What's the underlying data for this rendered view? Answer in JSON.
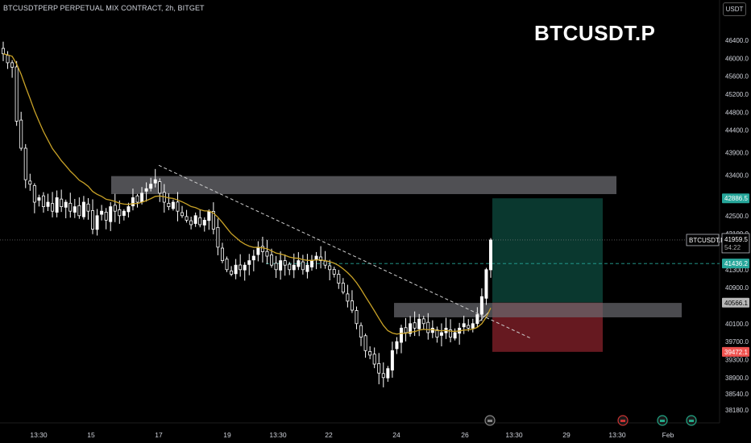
{
  "header": {
    "instrument_line": "BTCUSDTPERP PERPETUAL MIX CONTRACT, 2h, BITGET",
    "currency_button": "USDT",
    "watermark_title": "BTCUSDT.P"
  },
  "colors": {
    "background": "#000000",
    "candle_up": "#ffffff",
    "candle_down": "#ffffff",
    "ma_line": "#c9a227",
    "zone_gray": "#6b6b70",
    "profit_zone": "#0b3b31",
    "loss_zone": "#6b1a22",
    "price_last": "#ffffff",
    "tag_green": "#26a69a",
    "tag_red": "#ef5350",
    "tag_gray": "#b8b8b8"
  },
  "chart_data": {
    "type": "candlestick",
    "symbol": "BTCUSDT.P",
    "interval": "2h",
    "y_ticks": [
      46400,
      46000,
      45600,
      45200,
      44800,
      44400,
      43900,
      43400,
      42500,
      42100,
      41300,
      40900,
      40100,
      39700,
      39300,
      38900,
      38540,
      38180
    ],
    "y_tick_labels": [
      "46400.0",
      "46000.0",
      "45600.0",
      "45200.0",
      "44800.0",
      "44400.0",
      "43900.0",
      "43400.0",
      "42500.0",
      "42100.0",
      "41300.0",
      "40900.0",
      "40100.0",
      "39700.0",
      "39300.0",
      "38900.0",
      "38540.0",
      "38180.0"
    ],
    "x_tick_labels": [
      "13:30",
      "15",
      "17",
      "19",
      "13:30",
      "22",
      "24",
      "26",
      "13:30",
      "29",
      "13:30",
      "Feb"
    ],
    "price_tags": [
      {
        "label": "BTCUSDT.P",
        "value": "41959.5",
        "sub": "54:22",
        "style": "last"
      },
      {
        "label": "",
        "value": "42886.5",
        "style": "green"
      },
      {
        "label": "",
        "value": "41436.2",
        "style": "green"
      },
      {
        "label": "",
        "value": "40566.1",
        "style": "gray"
      },
      {
        "label": "",
        "value": "39472.1",
        "style": "red"
      }
    ],
    "supply_zone": {
      "top": 43380,
      "bottom": 42980
    },
    "demand_zone": {
      "top": 40560,
      "bottom": 40240
    },
    "position": {
      "entry": 40566.1,
      "target": 42886.5,
      "stop": 39472.1
    },
    "close_series": [
      46100,
      45900,
      45800,
      44600,
      44000,
      43300,
      43200,
      42800,
      42900,
      42700,
      42800,
      42600,
      42900,
      42700,
      42800,
      42600,
      42700,
      42500,
      42800,
      42600,
      42200,
      42500,
      42600,
      42400,
      42700,
      42600,
      42500,
      42600,
      42700,
      42900,
      42800,
      43000,
      43100,
      43200,
      43300,
      43000,
      42800,
      42700,
      42800,
      42600,
      42500,
      42400,
      42300,
      42500,
      42300,
      42400,
      42600,
      42200,
      41800,
      41500,
      41300,
      41200,
      41400,
      41300,
      41400,
      41500,
      41600,
      41800,
      41700,
      41600,
      41400,
      41300,
      41500,
      41400,
      41300,
      41400,
      41500,
      41300,
      41400,
      41500,
      41600,
      41500,
      41400,
      41300,
      41200,
      41000,
      40800,
      40600,
      40400,
      40100,
      39800,
      39500,
      39400,
      39200,
      39000,
      38900,
      39100,
      39500,
      39700,
      40000,
      39900,
      40100,
      40000,
      40200,
      40100,
      39900,
      40000,
      39800,
      39900,
      40000,
      39800,
      39900,
      40000,
      40100,
      40000,
      40100,
      40300,
      40700,
      41300,
      41959.5
    ]
  }
}
